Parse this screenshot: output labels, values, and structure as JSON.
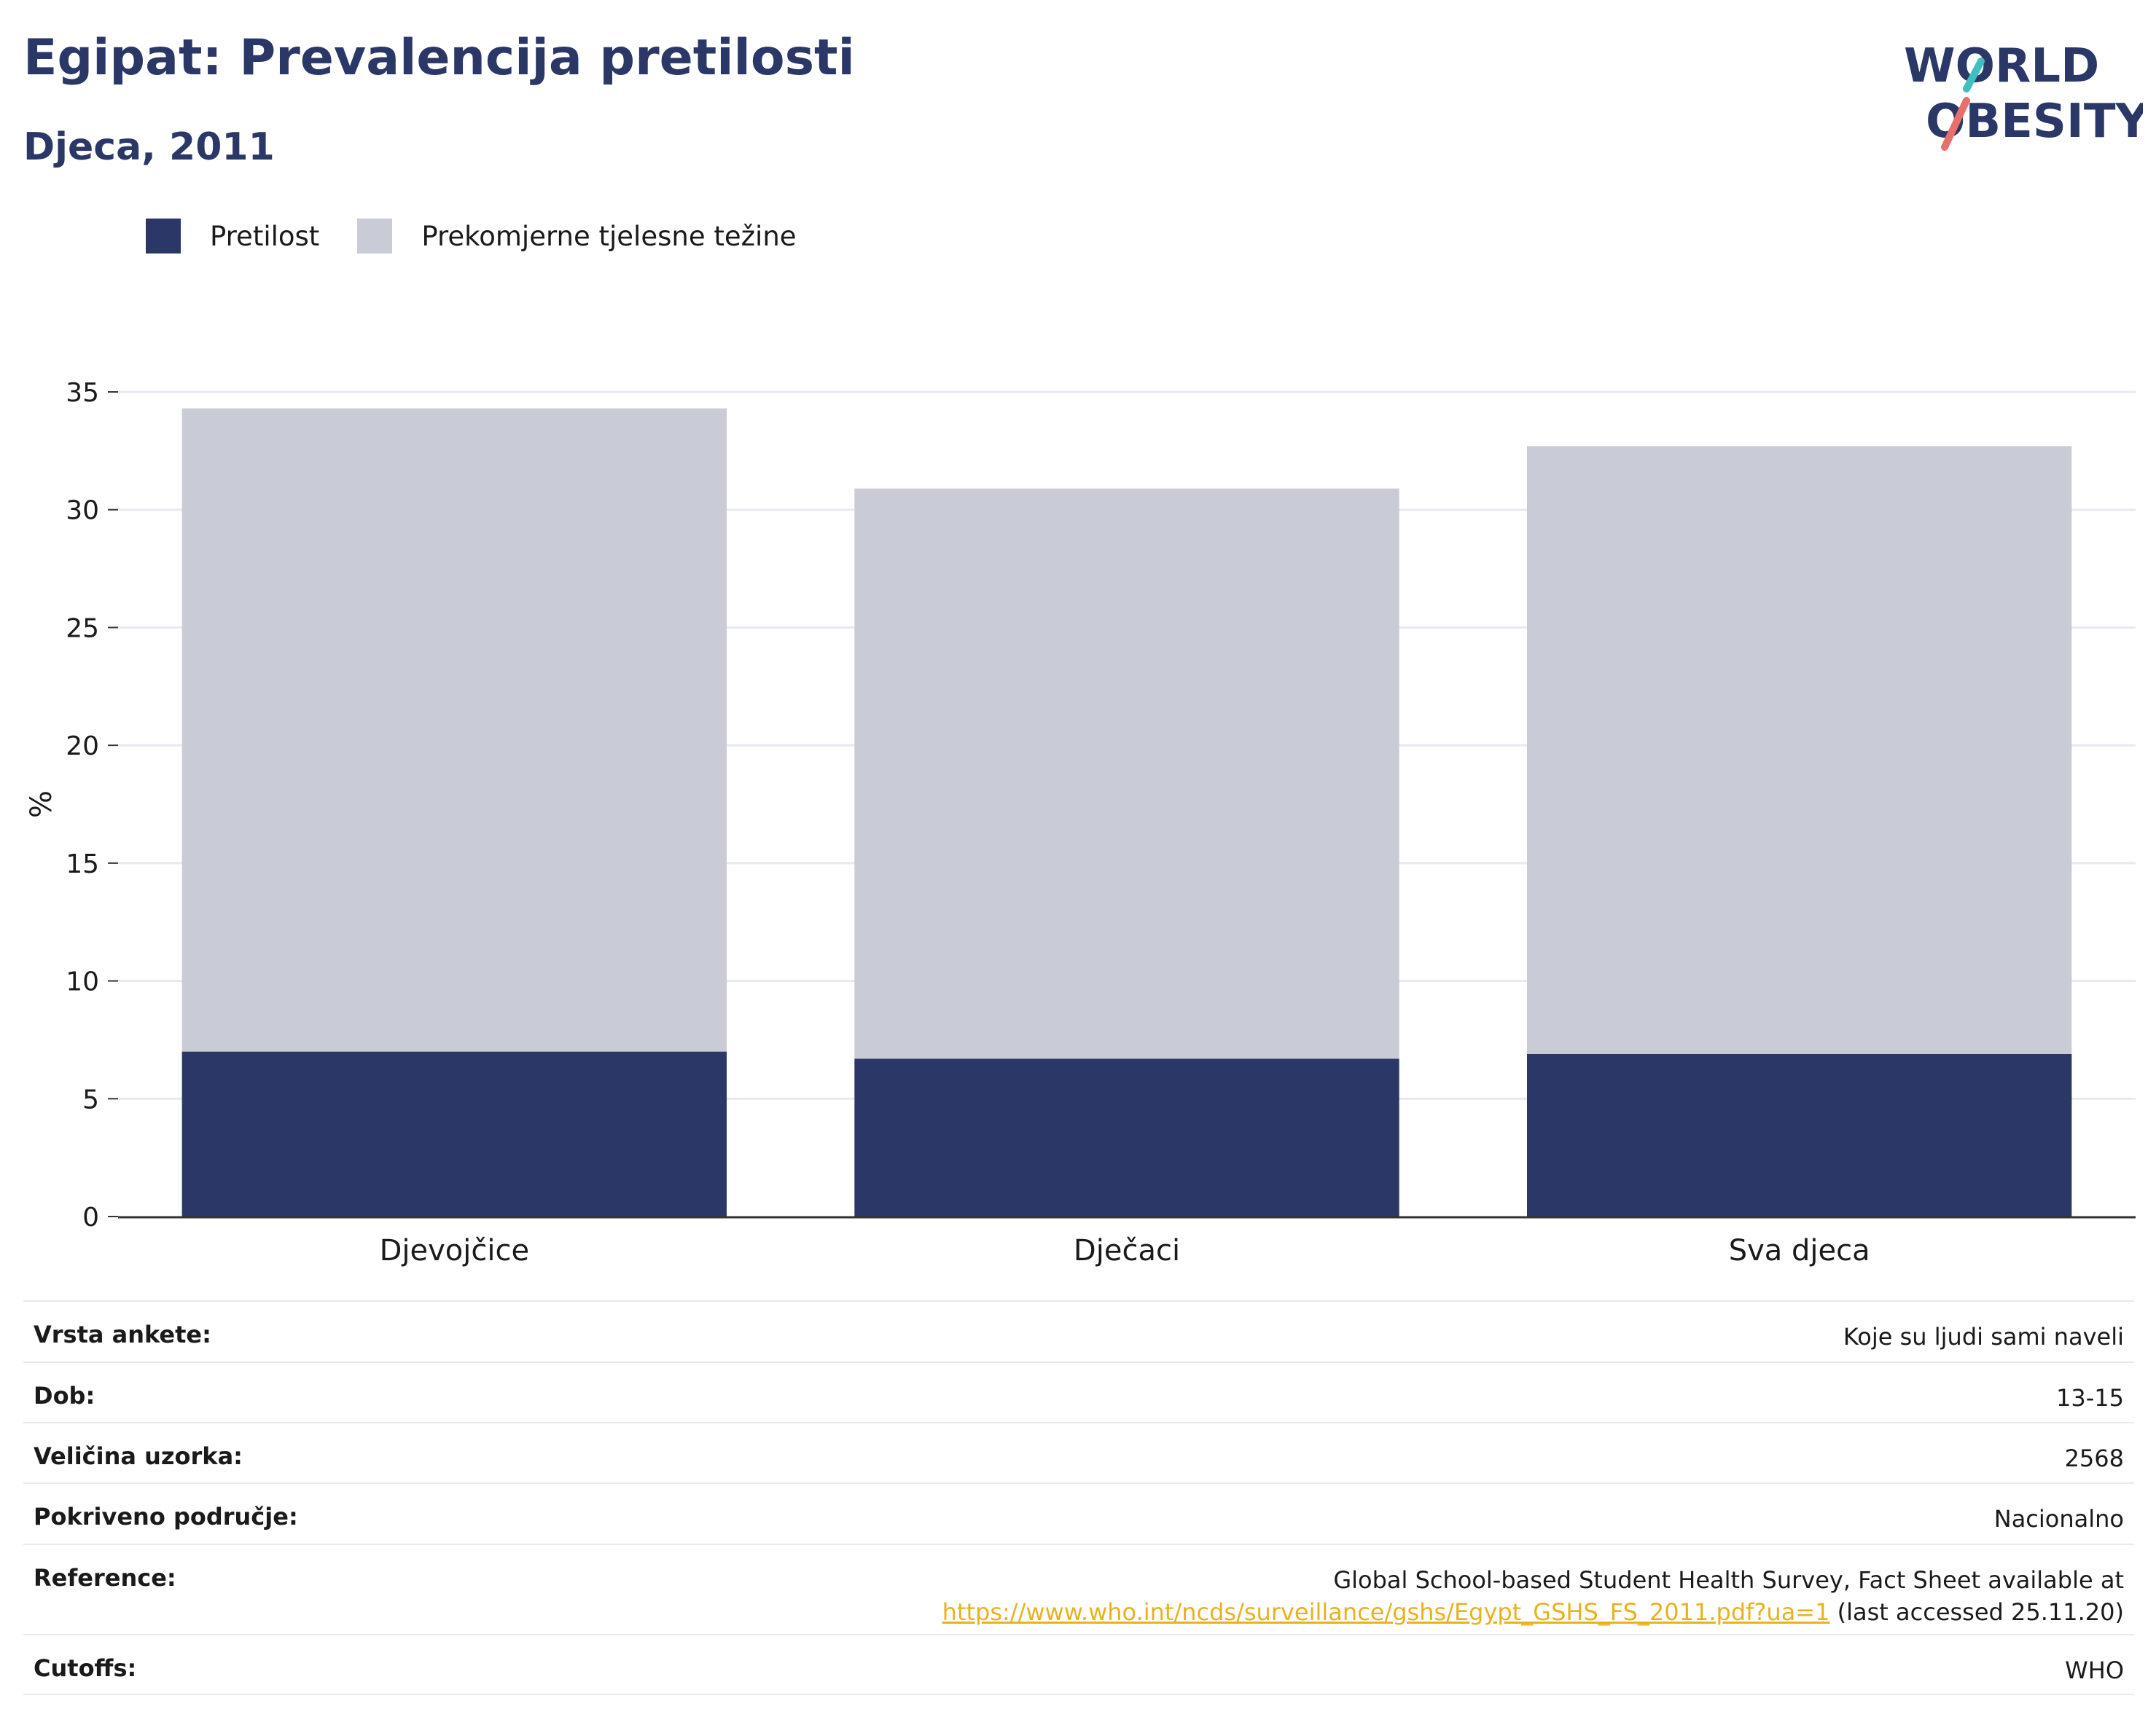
{
  "header": {
    "title": "Egipat: Prevalencija pretilosti",
    "subtitle": "Djeca, 2011"
  },
  "logo": {
    "line1": "WORLD",
    "line2": "OBESITY",
    "colors": {
      "navy": "#2b3766",
      "teal": "#3ebfc0",
      "coral": "#e8706a"
    }
  },
  "colors": {
    "obesity": "#2b3766",
    "overweight": "#c9cbd7",
    "gridline": "#e6e9f0",
    "axis": "#333333"
  },
  "chart_data": {
    "type": "bar",
    "stacked": true,
    "categories": [
      "Djevojčice",
      "Dječaci",
      "Sva djeca"
    ],
    "series": [
      {
        "name": "Pretilost",
        "values": [
          7.0,
          6.7,
          6.9
        ]
      },
      {
        "name": "Prekomjerne tjelesne težine",
        "values": [
          27.3,
          24.2,
          25.8
        ]
      }
    ],
    "ylabel": "%",
    "ylim": [
      0,
      35
    ],
    "yticks": [
      0,
      5,
      10,
      15,
      20,
      25,
      30,
      35
    ],
    "grid": true,
    "legend": "top-left"
  },
  "info": {
    "rows": [
      {
        "label": "Vrsta ankete:",
        "value": "Koje su ljudi sami naveli"
      },
      {
        "label": "Dob:",
        "value": "13-15"
      },
      {
        "label": "Veličina uzorka:",
        "value": "2568"
      },
      {
        "label": "Pokriveno područje:",
        "value": "Nacionalno"
      },
      {
        "label": "Cutoffs:",
        "value": "WHO"
      }
    ],
    "reference": {
      "label": "Reference:",
      "text": "Global School-based Student Health Survey, Fact Sheet available at",
      "link": "https://www.who.int/ncds/surveillance/gshs/Egypt_GSHS_FS_2011.pdf?ua=1",
      "suffix": "(last accessed 25.11.20)"
    }
  }
}
